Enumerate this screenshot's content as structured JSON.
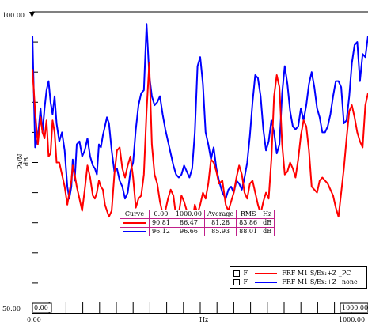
{
  "chart_data": {
    "type": "line",
    "title": "",
    "xlabel": "Hz",
    "ylabel": "Pa/N",
    "ylabel_unit": "dB",
    "xlim": [
      0,
      1000
    ],
    "ylim": [
      50,
      100
    ],
    "x_tick_labels": [
      "0.00",
      "1000.00"
    ],
    "y_tick_labels": [
      "100.00",
      "50.00"
    ],
    "cursor_x_left": "0.00",
    "cursor_x_right": "1000.00",
    "series": [
      {
        "name": "FRF M1:S/Ex:+Z _PC",
        "legend_flag": "F",
        "color": "#ff0000",
        "x": [
          0,
          8,
          16,
          24,
          30,
          36,
          42,
          48,
          54,
          60,
          66,
          72,
          80,
          88,
          96,
          104,
          110,
          116,
          120,
          126,
          132,
          140,
          148,
          156,
          164,
          172,
          180,
          186,
          192,
          198,
          204,
          210,
          216,
          222,
          228,
          236,
          244,
          252,
          260,
          268,
          276,
          284,
          292,
          300,
          308,
          316,
          324,
          332,
          340,
          348,
          356,
          364,
          372,
          380,
          388,
          396,
          404,
          412,
          420,
          428,
          436,
          444,
          452,
          460,
          468,
          476,
          484,
          492,
          500,
          508,
          516,
          524,
          532,
          540,
          548,
          556,
          566,
          576,
          584,
          592,
          600,
          608,
          616,
          624,
          632,
          640,
          648,
          656,
          664,
          672,
          680,
          688,
          696,
          704,
          712,
          720,
          728,
          736,
          744,
          752,
          760,
          768,
          776,
          784,
          792,
          800,
          808,
          816,
          824,
          832,
          840,
          848,
          856,
          864,
          872,
          880,
          888,
          896,
          904,
          912,
          920,
          928,
          936,
          944,
          952,
          960,
          968,
          976,
          984,
          992,
          1000
        ],
        "y": [
          90.5,
          83.5,
          78.0,
          82.5,
          80.0,
          79.0,
          82.0,
          76.0,
          76.5,
          82.0,
          80.0,
          75.0,
          75.0,
          73.0,
          71.0,
          68.0,
          70.0,
          72.0,
          74.5,
          73.0,
          71.0,
          69.0,
          67.0,
          70.5,
          74.5,
          72.5,
          69.5,
          69.0,
          70.0,
          72.0,
          71.0,
          70.5,
          68.0,
          67.0,
          66.0,
          67.0,
          73.0,
          77.0,
          77.5,
          74.0,
          72.5,
          74.5,
          76.0,
          72.5,
          67.5,
          69.0,
          69.5,
          73.0,
          83.5,
          91.5,
          78.0,
          73.0,
          71.5,
          68.5,
          66.5,
          67.0,
          69.0,
          70.5,
          69.5,
          66.0,
          66.5,
          69.5,
          68.5,
          67.0,
          65.5,
          65.0,
          68.0,
          66.5,
          68.0,
          70.0,
          69.0,
          71.5,
          75.5,
          75.0,
          73.5,
          71.5,
          72.0,
          68.0,
          67.0,
          68.5,
          70.0,
          72.5,
          74.5,
          73.0,
          70.0,
          69.0,
          71.5,
          72.0,
          70.0,
          68.0,
          66.5,
          68.5,
          70.0,
          69.0,
          75.5,
          86.0,
          89.5,
          87.5,
          78.0,
          73.0,
          73.5,
          75.0,
          74.0,
          72.5,
          75.5,
          79.5,
          82.0,
          81.0,
          77.0,
          71.0,
          70.5,
          70.0,
          72.0,
          72.5,
          72.0,
          71.5,
          70.5,
          69.5,
          67.5,
          66.0,
          70.0,
          74.0,
          79.0,
          83.5,
          84.5,
          82.5,
          80.0,
          78.5,
          77.5,
          84.5,
          86.5
        ]
      },
      {
        "name": "FRF M1:S/Ex:+Z _none",
        "legend_flag": "F",
        "color": "#0000ff",
        "x": [
          0,
          8,
          16,
          24,
          30,
          36,
          42,
          48,
          54,
          60,
          66,
          72,
          80,
          88,
          96,
          104,
          110,
          116,
          120,
          126,
          132,
          140,
          148,
          156,
          164,
          172,
          180,
          186,
          192,
          198,
          204,
          210,
          216,
          222,
          228,
          236,
          244,
          252,
          260,
          268,
          276,
          284,
          292,
          300,
          308,
          316,
          324,
          332,
          340,
          348,
          356,
          364,
          372,
          380,
          388,
          396,
          404,
          412,
          420,
          428,
          436,
          444,
          452,
          460,
          468,
          476,
          484,
          492,
          500,
          508,
          516,
          524,
          532,
          540,
          548,
          556,
          566,
          576,
          584,
          592,
          600,
          608,
          616,
          624,
          632,
          640,
          648,
          656,
          664,
          672,
          680,
          688,
          696,
          704,
          712,
          720,
          728,
          736,
          744,
          752,
          760,
          768,
          776,
          784,
          792,
          800,
          808,
          816,
          824,
          832,
          840,
          848,
          856,
          864,
          872,
          880,
          888,
          896,
          904,
          912,
          920,
          928,
          936,
          944,
          952,
          960,
          968,
          976,
          984,
          992,
          1000
        ],
        "y": [
          96.0,
          77.5,
          79.0,
          84.0,
          80.0,
          84.0,
          87.0,
          88.5,
          85.0,
          83.0,
          86.0,
          81.5,
          78.5,
          80.0,
          77.0,
          71.0,
          69.0,
          71.0,
          75.5,
          72.0,
          78.0,
          78.5,
          76.0,
          77.0,
          79.0,
          76.0,
          74.5,
          74.0,
          73.0,
          78.0,
          77.5,
          79.5,
          81.0,
          82.5,
          81.5,
          77.0,
          73.5,
          74.0,
          72.0,
          71.0,
          69.0,
          70.0,
          73.5,
          75.0,
          80.5,
          84.5,
          86.5,
          87.0,
          98.0,
          89.5,
          86.0,
          84.5,
          85.0,
          86.0,
          83.0,
          80.5,
          78.5,
          76.5,
          74.5,
          73.0,
          72.5,
          73.0,
          74.5,
          73.5,
          72.5,
          74.0,
          80.0,
          91.0,
          92.5,
          88.0,
          80.0,
          78.0,
          75.5,
          77.5,
          74.0,
          72.0,
          70.0,
          69.0,
          70.5,
          71.0,
          70.0,
          72.0,
          71.5,
          70.5,
          72.5,
          75.0,
          79.5,
          85.0,
          89.5,
          89.0,
          86.0,
          80.5,
          77.0,
          78.5,
          82.0,
          80.0,
          76.5,
          78.0,
          86.5,
          91.0,
          88.0,
          83.5,
          81.0,
          80.5,
          81.0,
          84.0,
          82.0,
          84.5,
          88.0,
          90.0,
          87.5,
          84.0,
          82.5,
          80.0,
          80.0,
          81.0,
          83.0,
          86.0,
          88.5,
          88.5,
          87.5,
          81.5,
          82.0,
          86.0,
          91.5,
          94.5,
          95.0,
          88.5,
          93.0,
          92.5,
          96.0
        ]
      }
    ],
    "stats_table": {
      "headers": [
        "Curve",
        "0.00",
        "1000.00",
        "Average",
        "RMS",
        "Hz"
      ],
      "rows": [
        {
          "color": "#ff0000",
          "values": [
            "90.81",
            "86.47",
            "81.28",
            "83.86"
          ],
          "unit": "dB"
        },
        {
          "color": "#0000ff",
          "values": [
            "96.12",
            "96.66",
            "85.93",
            "88.01"
          ],
          "unit": "dB"
        }
      ]
    }
  }
}
